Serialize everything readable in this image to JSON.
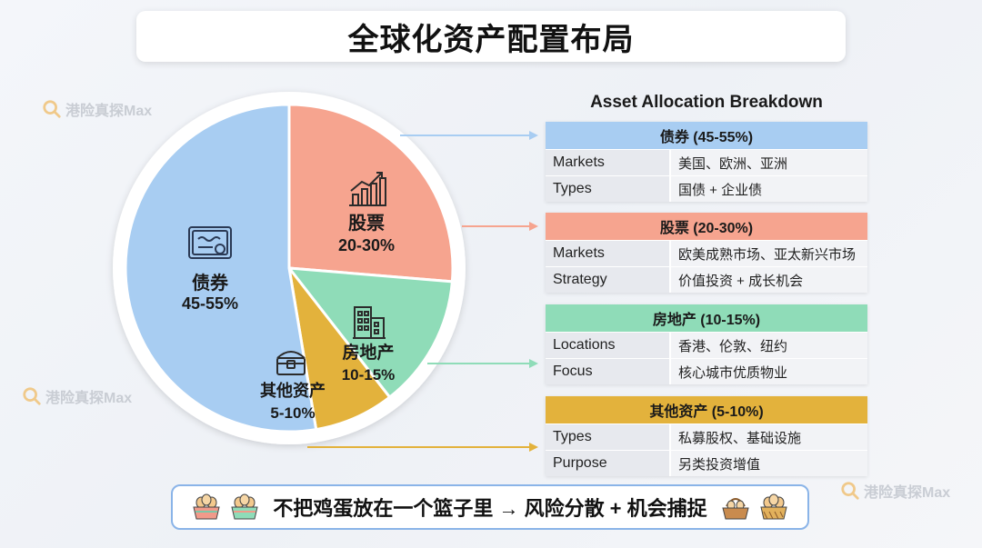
{
  "title": "全球化资产配置布局",
  "watermark_text": "港险真探Max",
  "chart_data": {
    "type": "pie",
    "title": "全球化资产配置布局",
    "slices": [
      {
        "label": "债券",
        "range": "45-55%",
        "value": 50,
        "color": "#a8cdf2",
        "icon": "certificate-icon"
      },
      {
        "label": "股票",
        "range": "20-30%",
        "value": 25,
        "color": "#f6a48f",
        "icon": "stock-chart-icon"
      },
      {
        "label": "房地产",
        "range": "10-15%",
        "value": 12.5,
        "color": "#8fdcb8",
        "icon": "building-icon"
      },
      {
        "label": "其他资产",
        "range": "5-10%",
        "value": 7.5,
        "color": "#e3b23c",
        "icon": "treasure-chest-icon"
      }
    ]
  },
  "breakdown": {
    "title": "Asset Allocation Breakdown",
    "cards": [
      {
        "header": "债券 (45-55%)",
        "color": "#a8cdf2",
        "rows": [
          {
            "key": "Markets",
            "value": "美国、欧洲、亚洲"
          },
          {
            "key": "Types",
            "value": "国债 + 企业债"
          }
        ]
      },
      {
        "header": "股票 (20-30%)",
        "color": "#f6a48f",
        "rows": [
          {
            "key": "Markets",
            "value": "欧美成熟市场、亚太新兴市场"
          },
          {
            "key": "Strategy",
            "value": "价值投资 + 成长机会"
          }
        ]
      },
      {
        "header": "房地产 (10-15%)",
        "color": "#8fdcb8",
        "rows": [
          {
            "key": "Locations",
            "value": "香港、伦敦、纽约"
          },
          {
            "key": "Focus",
            "value": "核心城市优质物业"
          }
        ]
      },
      {
        "header": "其他资产 (5-10%)",
        "color": "#e3b23c",
        "rows": [
          {
            "key": "Types",
            "value": "私募股权、基础设施"
          },
          {
            "key": "Purpose",
            "value": "另类投资增值"
          }
        ]
      }
    ]
  },
  "footer": {
    "slogan": "不把鸡蛋放在一个篮子里 → 风险分散 + 机会捕捉",
    "icons": [
      "egg-basket-icon",
      "egg-basket-icon",
      "egg-basket-icon",
      "egg-basket-icon"
    ]
  }
}
